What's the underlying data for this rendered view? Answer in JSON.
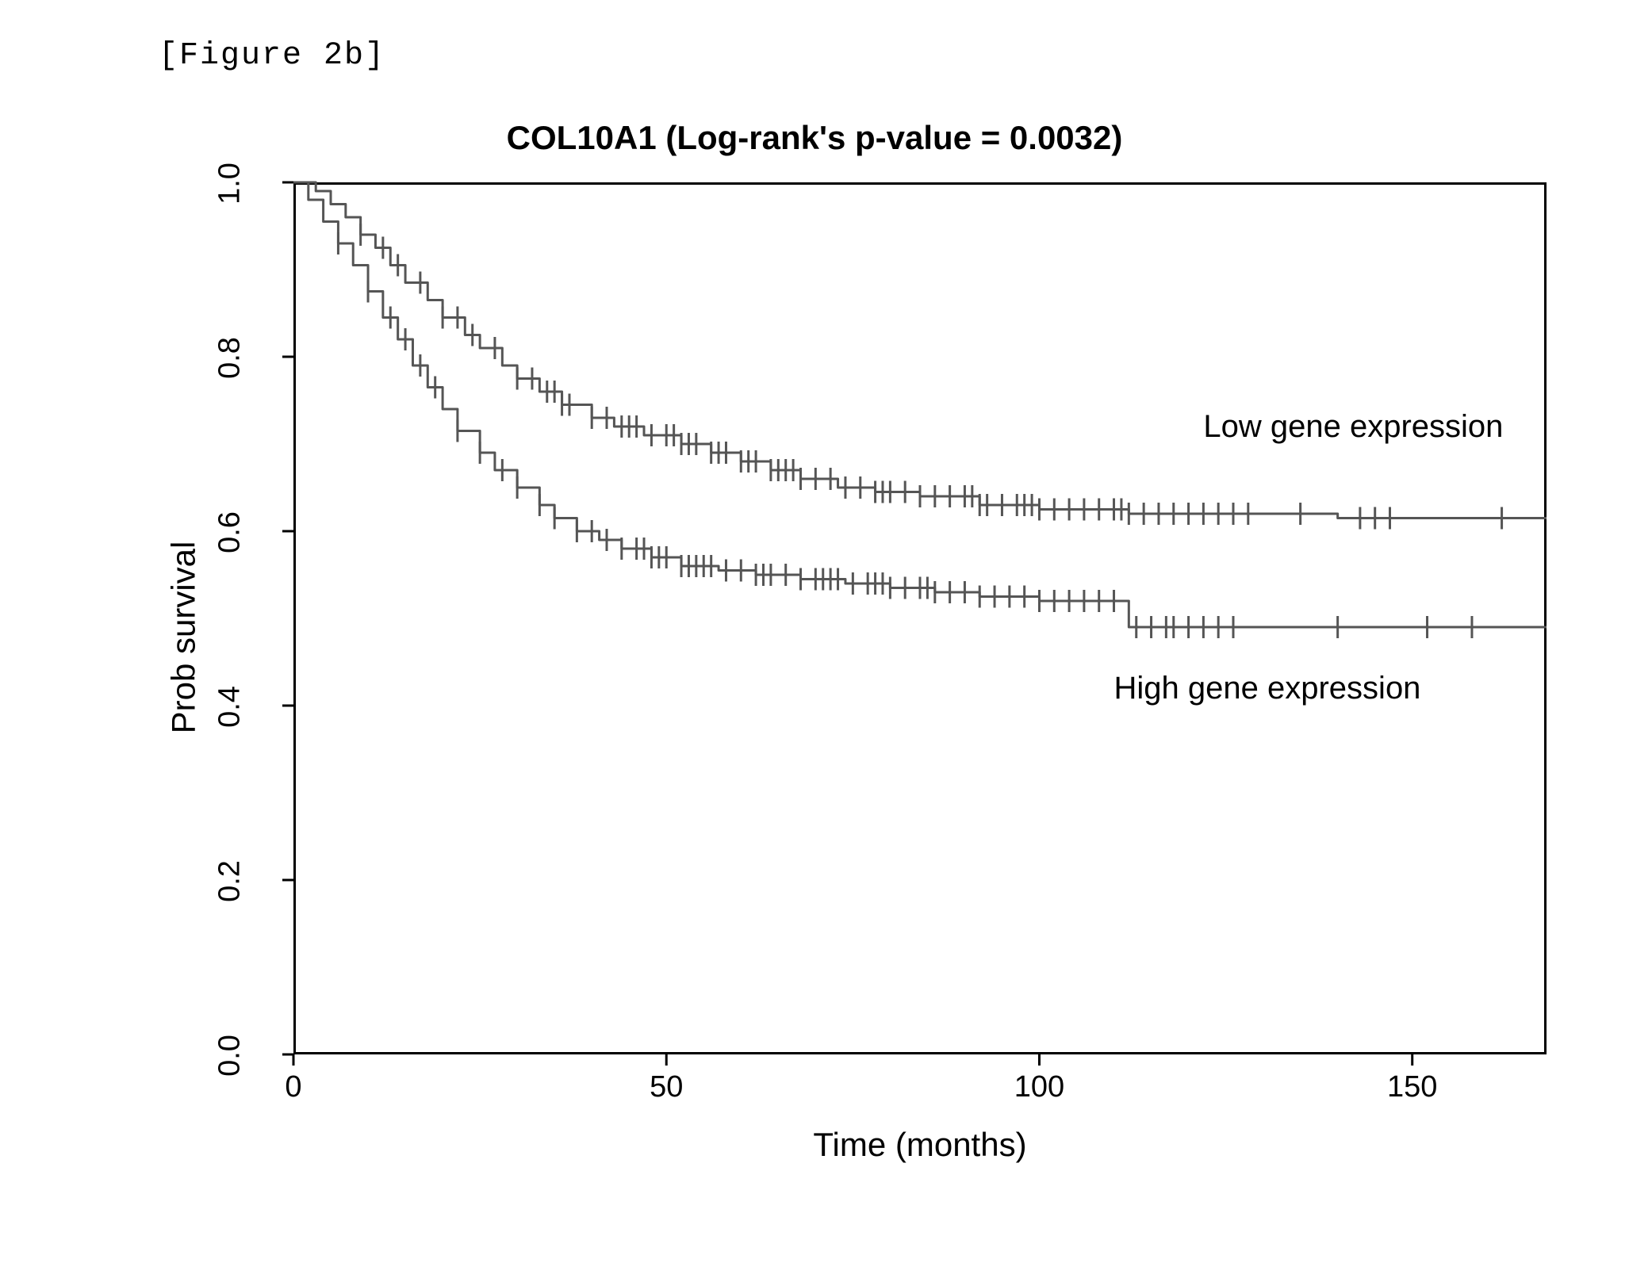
{
  "figure_caption": "[Figure 2b]",
  "chart": {
    "type": "kaplan-meier",
    "title": "COL10A1 (Log-rank's p-value = 0.0032)",
    "title_fontsize": 42,
    "title_fontweight": "900",
    "caption_font": "Courier New",
    "background_color": "#ffffff",
    "border_color": "#000000",
    "border_width": 3,
    "x_axis": {
      "label": "Time (months)",
      "label_fontsize": 42,
      "lim": [
        0,
        168
      ],
      "ticks": [
        0,
        50,
        100,
        150
      ],
      "tick_fontsize": 38
    },
    "y_axis": {
      "label": "Prob survival",
      "label_fontsize": 42,
      "lim": [
        0.0,
        1.0
      ],
      "ticks": [
        0.0,
        0.2,
        0.4,
        0.6,
        0.8,
        1.0
      ],
      "tick_labels": [
        "0.0",
        "0.2",
        "0.4",
        "0.6",
        "0.8",
        "1.0"
      ],
      "tick_fontsize": 38,
      "tick_orientation": "rotated-90"
    },
    "tick_length": 14,
    "line_color": "#555555",
    "censor_color": "#555555",
    "line_width": 3,
    "censor_marker": "vertical-tick",
    "censor_marker_height": 14,
    "series": [
      {
        "name": "low",
        "label": "Low gene expression",
        "label_pos": {
          "x": 122,
          "y_anchor": 0.72
        },
        "step_points": [
          [
            0,
            1.0
          ],
          [
            3,
            1.0
          ],
          [
            3,
            0.99
          ],
          [
            5,
            0.99
          ],
          [
            5,
            0.975
          ],
          [
            7,
            0.975
          ],
          [
            7,
            0.96
          ],
          [
            9,
            0.96
          ],
          [
            9,
            0.94
          ],
          [
            11,
            0.94
          ],
          [
            11,
            0.925
          ],
          [
            13,
            0.925
          ],
          [
            13,
            0.905
          ],
          [
            15,
            0.905
          ],
          [
            15,
            0.885
          ],
          [
            18,
            0.885
          ],
          [
            18,
            0.865
          ],
          [
            20,
            0.865
          ],
          [
            20,
            0.845
          ],
          [
            23,
            0.845
          ],
          [
            23,
            0.825
          ],
          [
            25,
            0.825
          ],
          [
            25,
            0.81
          ],
          [
            28,
            0.81
          ],
          [
            28,
            0.79
          ],
          [
            30,
            0.79
          ],
          [
            30,
            0.775
          ],
          [
            33,
            0.775
          ],
          [
            33,
            0.76
          ],
          [
            36,
            0.76
          ],
          [
            36,
            0.745
          ],
          [
            40,
            0.745
          ],
          [
            40,
            0.73
          ],
          [
            43,
            0.73
          ],
          [
            43,
            0.72
          ],
          [
            47,
            0.72
          ],
          [
            47,
            0.71
          ],
          [
            52,
            0.71
          ],
          [
            52,
            0.7
          ],
          [
            56,
            0.7
          ],
          [
            56,
            0.69
          ],
          [
            60,
            0.69
          ],
          [
            60,
            0.68
          ],
          [
            64,
            0.68
          ],
          [
            64,
            0.67
          ],
          [
            68,
            0.67
          ],
          [
            68,
            0.66
          ],
          [
            73,
            0.66
          ],
          [
            73,
            0.65
          ],
          [
            78,
            0.65
          ],
          [
            78,
            0.645
          ],
          [
            84,
            0.645
          ],
          [
            84,
            0.64
          ],
          [
            92,
            0.64
          ],
          [
            92,
            0.63
          ],
          [
            100,
            0.63
          ],
          [
            100,
            0.625
          ],
          [
            112,
            0.625
          ],
          [
            112,
            0.62
          ],
          [
            128,
            0.62
          ],
          [
            140,
            0.62
          ],
          [
            140,
            0.615
          ],
          [
            168,
            0.615
          ]
        ],
        "censor_x": [
          9,
          12,
          14,
          17,
          20,
          22,
          24,
          27,
          30,
          32,
          34,
          35,
          36,
          37,
          40,
          42,
          44,
          45,
          46,
          48,
          50,
          51,
          52,
          53,
          54,
          56,
          57,
          58,
          60,
          61,
          62,
          64,
          65,
          66,
          67,
          68,
          70,
          72,
          74,
          76,
          78,
          79,
          80,
          82,
          84,
          86,
          88,
          90,
          91,
          92,
          93,
          95,
          97,
          98,
          99,
          100,
          102,
          104,
          106,
          108,
          110,
          111,
          112,
          114,
          116,
          118,
          120,
          122,
          124,
          126,
          128,
          135,
          143,
          145,
          147,
          162
        ]
      },
      {
        "name": "high",
        "label": "High gene expression",
        "label_pos": {
          "x": 110,
          "y_anchor": 0.42
        },
        "step_points": [
          [
            0,
            1.0
          ],
          [
            2,
            1.0
          ],
          [
            2,
            0.98
          ],
          [
            4,
            0.98
          ],
          [
            4,
            0.955
          ],
          [
            6,
            0.955
          ],
          [
            6,
            0.93
          ],
          [
            8,
            0.93
          ],
          [
            8,
            0.905
          ],
          [
            10,
            0.905
          ],
          [
            10,
            0.875
          ],
          [
            12,
            0.875
          ],
          [
            12,
            0.845
          ],
          [
            14,
            0.845
          ],
          [
            14,
            0.82
          ],
          [
            16,
            0.82
          ],
          [
            16,
            0.79
          ],
          [
            18,
            0.79
          ],
          [
            18,
            0.765
          ],
          [
            20,
            0.765
          ],
          [
            20,
            0.74
          ],
          [
            22,
            0.74
          ],
          [
            22,
            0.715
          ],
          [
            25,
            0.715
          ],
          [
            25,
            0.69
          ],
          [
            27,
            0.69
          ],
          [
            27,
            0.67
          ],
          [
            30,
            0.67
          ],
          [
            30,
            0.65
          ],
          [
            33,
            0.65
          ],
          [
            33,
            0.63
          ],
          [
            35,
            0.63
          ],
          [
            35,
            0.615
          ],
          [
            38,
            0.615
          ],
          [
            38,
            0.6
          ],
          [
            41,
            0.6
          ],
          [
            41,
            0.59
          ],
          [
            44,
            0.59
          ],
          [
            44,
            0.58
          ],
          [
            48,
            0.58
          ],
          [
            48,
            0.57
          ],
          [
            52,
            0.57
          ],
          [
            52,
            0.56
          ],
          [
            57,
            0.56
          ],
          [
            57,
            0.555
          ],
          [
            62,
            0.555
          ],
          [
            62,
            0.55
          ],
          [
            68,
            0.55
          ],
          [
            68,
            0.545
          ],
          [
            74,
            0.545
          ],
          [
            74,
            0.54
          ],
          [
            80,
            0.54
          ],
          [
            80,
            0.535
          ],
          [
            86,
            0.535
          ],
          [
            86,
            0.53
          ],
          [
            92,
            0.53
          ],
          [
            92,
            0.525
          ],
          [
            100,
            0.525
          ],
          [
            100,
            0.52
          ],
          [
            112,
            0.52
          ],
          [
            112,
            0.49
          ],
          [
            168,
            0.49
          ]
        ],
        "censor_x": [
          6,
          10,
          13,
          15,
          17,
          19,
          22,
          25,
          28,
          30,
          33,
          35,
          38,
          40,
          42,
          44,
          46,
          47,
          48,
          49,
          50,
          52,
          53,
          54,
          55,
          56,
          58,
          60,
          62,
          63,
          64,
          66,
          68,
          70,
          71,
          72,
          73,
          75,
          77,
          78,
          79,
          80,
          82,
          84,
          85,
          86,
          88,
          90,
          92,
          94,
          96,
          98,
          100,
          102,
          104,
          106,
          108,
          110,
          113,
          115,
          117,
          118,
          120,
          122,
          124,
          126,
          140,
          152,
          158
        ]
      }
    ]
  }
}
